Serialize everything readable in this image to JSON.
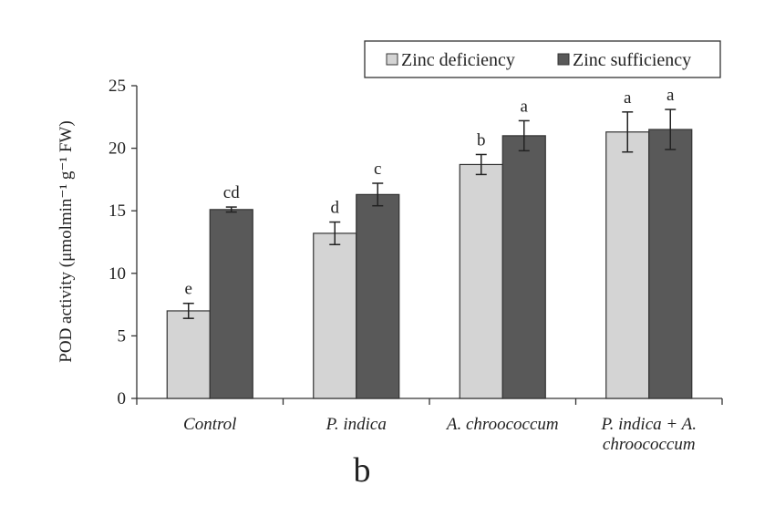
{
  "chart_data": {
    "type": "bar",
    "categories": [
      [
        "Control"
      ],
      [
        "P. indica"
      ],
      [
        "A. chroococcum"
      ],
      [
        "P. indica + A.",
        "chroococcum"
      ]
    ],
    "series": [
      {
        "name": "Zinc deficiency",
        "values": [
          7.0,
          13.2,
          18.7,
          21.3
        ],
        "errors": [
          0.6,
          0.9,
          0.8,
          1.6
        ],
        "letters": [
          "e",
          "d",
          "b",
          "a"
        ],
        "color": "#d4d4d4"
      },
      {
        "name": "Zinc sufficiency",
        "values": [
          15.1,
          16.3,
          21.0,
          21.5
        ],
        "errors": [
          0.2,
          0.9,
          1.2,
          1.6
        ],
        "letters": [
          "cd",
          "c",
          "a",
          "a"
        ],
        "color": "#595959"
      }
    ],
    "ylabel": "POD activity (μmolmin⁻¹ g⁻¹ FW)",
    "ylim": [
      0,
      25
    ],
    "yticks": [
      0,
      5,
      10,
      15,
      20,
      25
    ],
    "grid": false,
    "legend_position": "top-right",
    "panel_label": "b"
  }
}
